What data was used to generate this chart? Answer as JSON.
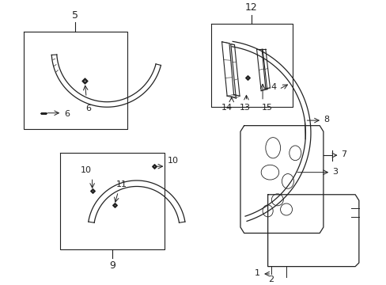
{
  "bg_color": "#ffffff",
  "fig_width": 4.89,
  "fig_height": 3.6,
  "dpi": 100,
  "gray": "#222222"
}
